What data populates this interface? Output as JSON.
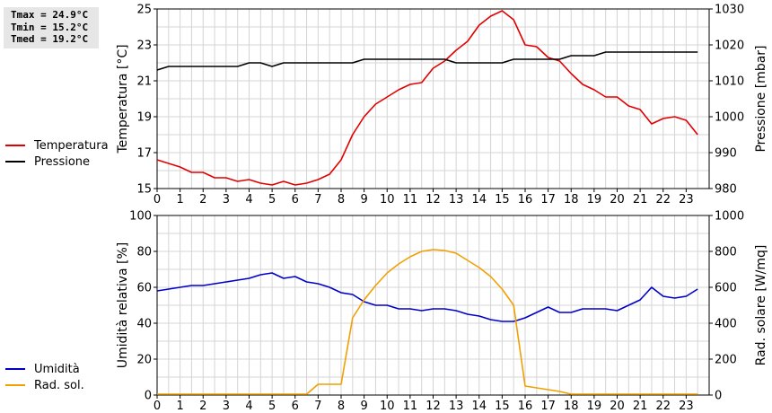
{
  "stats": {
    "tmax": "Tmax = 24.9°C",
    "tmin": "Tmin = 15.2°C",
    "tmed": "Tmed = 19.2°C"
  },
  "chart_data": [
    {
      "type": "line",
      "xlabel": "",
      "ylabel": "Temperatura [°C]",
      "y2label": "Pressione [mbar]",
      "xlim": [
        0,
        24
      ],
      "ylim": [
        15,
        25
      ],
      "y2lim": [
        980,
        1030
      ],
      "xticks": [
        "0",
        "1",
        "2",
        "3",
        "4",
        "5",
        "6",
        "7",
        "8",
        "9",
        "10",
        "11",
        "12",
        "13",
        "14",
        "15",
        "16",
        "17",
        "18",
        "19",
        "20",
        "21",
        "22",
        "23"
      ],
      "yticks": [
        15,
        17,
        19,
        21,
        23,
        25
      ],
      "y2ticks": [
        980,
        990,
        1000,
        1010,
        1020,
        1030
      ],
      "grid": true,
      "legend_position": "left",
      "series": [
        {
          "name": "Temperatura",
          "axis": "left",
          "color": "#e00000",
          "x": [
            0,
            0.5,
            1,
            1.5,
            2,
            2.5,
            3,
            3.5,
            4,
            4.5,
            5,
            5.5,
            6,
            6.5,
            7,
            7.5,
            8,
            8.5,
            9,
            9.5,
            10,
            10.5,
            11,
            11.5,
            12,
            12.5,
            13,
            13.5,
            14,
            14.5,
            15,
            15.5,
            16,
            16.5,
            17,
            17.5,
            18,
            18.5,
            19,
            19.5,
            20,
            20.5,
            21,
            21.5,
            22,
            22.5,
            23,
            23.5
          ],
          "values": [
            16.6,
            16.4,
            16.2,
            15.9,
            15.9,
            15.6,
            15.6,
            15.4,
            15.5,
            15.3,
            15.2,
            15.4,
            15.2,
            15.3,
            15.5,
            15.8,
            16.6,
            18.0,
            19.0,
            19.7,
            20.1,
            20.5,
            20.8,
            20.9,
            21.7,
            22.1,
            22.7,
            23.2,
            24.1,
            24.6,
            24.9,
            24.4,
            23.0,
            22.9,
            22.3,
            22.1,
            21.4,
            20.8,
            20.5,
            20.1,
            20.1,
            19.6,
            19.4,
            18.6,
            18.9,
            19.0,
            18.8,
            18.0
          ]
        },
        {
          "name": "Pressione",
          "axis": "right",
          "color": "#000000",
          "x": [
            0,
            0.5,
            1,
            1.5,
            2,
            2.5,
            3,
            3.5,
            4,
            4.5,
            5,
            5.5,
            6,
            6.5,
            7,
            7.5,
            8,
            8.5,
            9,
            9.5,
            10,
            10.5,
            11,
            11.5,
            12,
            12.5,
            13,
            13.5,
            14,
            14.5,
            15,
            15.5,
            16,
            16.5,
            17,
            17.5,
            18,
            18.5,
            19,
            19.5,
            20,
            20.5,
            21,
            21.5,
            22,
            22.5,
            23,
            23.5
          ],
          "values": [
            1013,
            1014,
            1014,
            1014,
            1014,
            1014,
            1014,
            1014,
            1015,
            1015,
            1014,
            1015,
            1015,
            1015,
            1015,
            1015,
            1015,
            1015,
            1016,
            1016,
            1016,
            1016,
            1016,
            1016,
            1016,
            1016,
            1015,
            1015,
            1015,
            1015,
            1015,
            1016,
            1016,
            1016,
            1016,
            1016,
            1017,
            1017,
            1017,
            1018,
            1018,
            1018,
            1018,
            1018,
            1018,
            1018,
            1018,
            1018
          ]
        }
      ]
    },
    {
      "type": "line",
      "xlabel": "",
      "ylabel": "Umidità relativa [%]",
      "y2label": "Rad. solare [W/mq]",
      "xlim": [
        0,
        24
      ],
      "ylim": [
        0,
        100
      ],
      "y2lim": [
        0,
        1000
      ],
      "xticks": [
        "0",
        "1",
        "2",
        "3",
        "4",
        "5",
        "6",
        "7",
        "8",
        "9",
        "10",
        "11",
        "12",
        "13",
        "14",
        "15",
        "16",
        "17",
        "18",
        "19",
        "20",
        "21",
        "22",
        "23"
      ],
      "yticks": [
        0,
        20,
        40,
        60,
        80,
        100
      ],
      "y2ticks": [
        0,
        200,
        400,
        600,
        800,
        1000
      ],
      "grid": true,
      "legend_position": "left",
      "series": [
        {
          "name": "Umidità",
          "axis": "left",
          "color": "#0000c8",
          "x": [
            0,
            0.5,
            1,
            1.5,
            2,
            2.5,
            3,
            3.5,
            4,
            4.5,
            5,
            5.5,
            6,
            6.5,
            7,
            7.5,
            8,
            8.5,
            9,
            9.5,
            10,
            10.5,
            11,
            11.5,
            12,
            12.5,
            13,
            13.5,
            14,
            14.5,
            15,
            15.5,
            16,
            16.5,
            17,
            17.5,
            18,
            18.5,
            19,
            19.5,
            20,
            20.5,
            21,
            21.5,
            22,
            22.5,
            23,
            23.5
          ],
          "values": [
            58,
            59,
            60,
            61,
            61,
            62,
            63,
            64,
            65,
            67,
            68,
            65,
            66,
            63,
            62,
            60,
            57,
            56,
            52,
            50,
            50,
            48,
            48,
            47,
            48,
            48,
            47,
            45,
            44,
            42,
            41,
            41,
            43,
            46,
            49,
            46,
            46,
            48,
            48,
            48,
            47,
            50,
            53,
            60,
            55,
            54,
            55,
            59
          ]
        },
        {
          "name": "Rad. sol.",
          "axis": "right",
          "color": "#f0a000",
          "x": [
            0,
            0.5,
            1,
            1.5,
            2,
            2.5,
            3,
            3.5,
            4,
            4.5,
            5,
            5.5,
            6,
            6.5,
            7,
            7.5,
            8,
            8.5,
            9,
            9.5,
            10,
            10.5,
            11,
            11.5,
            12,
            12.5,
            13,
            13.5,
            14,
            14.5,
            15,
            15.5,
            16,
            16.5,
            17,
            17.5,
            18,
            18.5,
            19,
            19.5,
            20,
            20.5,
            21,
            21.5,
            22,
            22.5,
            23,
            23.5
          ],
          "values": [
            5,
            5,
            5,
            5,
            5,
            5,
            5,
            5,
            5,
            5,
            5,
            5,
            5,
            5,
            60,
            60,
            60,
            430,
            530,
            610,
            680,
            730,
            770,
            800,
            810,
            805,
            790,
            750,
            710,
            660,
            590,
            500,
            50,
            40,
            30,
            20,
            5,
            5,
            5,
            5,
            5,
            5,
            5,
            5,
            5,
            5,
            5,
            5
          ]
        }
      ]
    }
  ]
}
